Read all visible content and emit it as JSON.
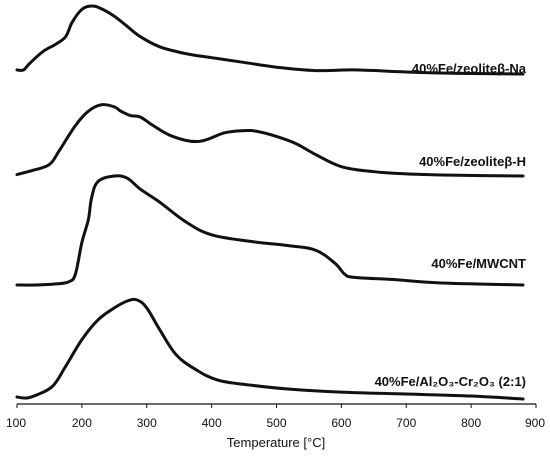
{
  "chart_data": {
    "type": "line",
    "xlabel": "Temperature [°C]",
    "ylabel": "",
    "xlim": [
      100,
      900
    ],
    "x_ticks": [
      100,
      200,
      300,
      400,
      500,
      600,
      700,
      800,
      900
    ],
    "grid": false,
    "legend": "none",
    "line_color": "#111111",
    "series": [
      {
        "name": "40%Fe/zeoliteβ-Na",
        "x": [
          100,
          110,
          120,
          140,
          160,
          175,
          185,
          200,
          215,
          230,
          250,
          270,
          290,
          320,
          360,
          400,
          450,
          500,
          560,
          620,
          700,
          780,
          880
        ],
        "y": [
          0.06,
          0.06,
          0.16,
          0.33,
          0.44,
          0.55,
          0.76,
          0.95,
          1.0,
          0.96,
          0.85,
          0.7,
          0.55,
          0.4,
          0.3,
          0.24,
          0.17,
          0.1,
          0.05,
          0.06,
          0.03,
          0.01,
          0.0
        ]
      },
      {
        "name": "40%Fe/zeoliteβ-H",
        "x": [
          100,
          125,
          150,
          165,
          190,
          210,
          230,
          250,
          260,
          275,
          290,
          310,
          340,
          380,
          420,
          450,
          470,
          500,
          530,
          560,
          600,
          650,
          700,
          780,
          880
        ],
        "y": [
          0.02,
          0.08,
          0.16,
          0.35,
          0.7,
          0.9,
          0.99,
          0.96,
          0.9,
          0.84,
          0.82,
          0.7,
          0.55,
          0.48,
          0.6,
          0.63,
          0.62,
          0.55,
          0.45,
          0.3,
          0.13,
          0.06,
          0.03,
          0.01,
          0.0
        ]
      },
      {
        "name": "40%Fe/MWCNT",
        "x": [
          100,
          130,
          160,
          180,
          190,
          200,
          210,
          215,
          225,
          250,
          270,
          290,
          320,
          360,
          400,
          460,
          520,
          560,
          590,
          605,
          620,
          680,
          750,
          880
        ],
        "y": [
          0.0,
          0.0,
          0.01,
          0.03,
          0.1,
          0.39,
          0.6,
          0.8,
          0.95,
          1.0,
          0.98,
          0.88,
          0.76,
          0.58,
          0.46,
          0.4,
          0.36,
          0.32,
          0.2,
          0.1,
          0.07,
          0.05,
          0.02,
          0.0
        ]
      },
      {
        "name": "40%Fe/Al₂O₃-Cr₂O₃ (2:1)",
        "x": [
          100,
          115,
          130,
          155,
          175,
          200,
          225,
          250,
          270,
          285,
          300,
          320,
          345,
          375,
          410,
          460,
          520,
          600,
          700,
          800,
          880
        ],
        "y": [
          0.02,
          0.01,
          0.04,
          0.13,
          0.33,
          0.6,
          0.8,
          0.92,
          0.99,
          1.0,
          0.92,
          0.7,
          0.45,
          0.3,
          0.19,
          0.14,
          0.1,
          0.07,
          0.05,
          0.03,
          0.0
        ]
      }
    ]
  }
}
